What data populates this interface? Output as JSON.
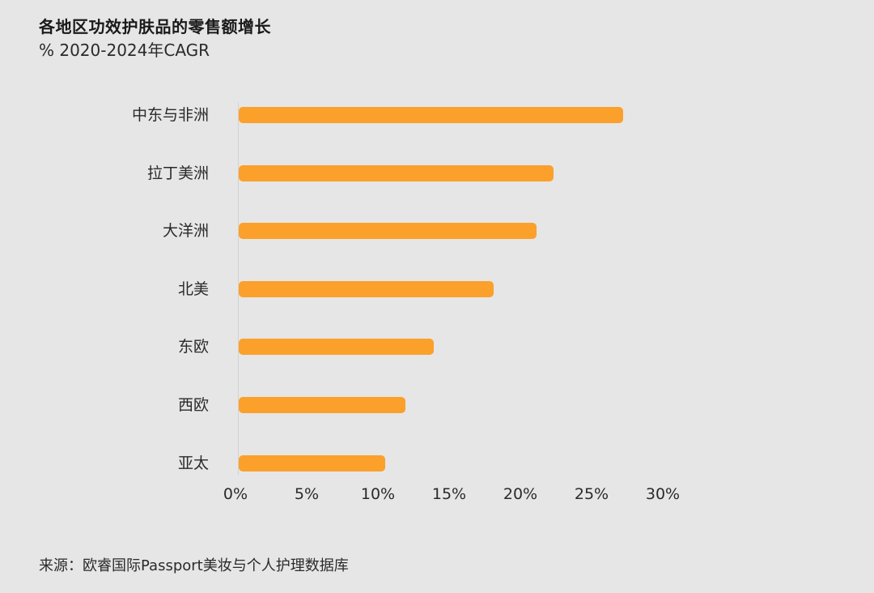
{
  "title": "各地区功效护肤品的零售额增长",
  "subtitle": "% 2020-2024年CAGR",
  "source": "来源：欧睿国际Passport美妆与个人护理数据库",
  "colors": {
    "bar": "#fba02b",
    "background": "#e6e6e6"
  },
  "axis": {
    "ticks": [
      "0%",
      "5%",
      "10%",
      "15%",
      "20%",
      "25%",
      "30%"
    ]
  },
  "chart_data": {
    "type": "bar",
    "orientation": "horizontal",
    "title": "各地区功效护肤品的零售额增长",
    "subtitle": "% 2020-2024年CAGR",
    "xlabel": "",
    "ylabel": "",
    "categories": [
      "中东与非洲",
      "拉丁美洲",
      "大洋洲",
      "北美",
      "东欧",
      "西欧",
      "亚太"
    ],
    "values": [
      27.0,
      22.1,
      20.9,
      17.9,
      13.7,
      11.7,
      10.3
    ],
    "unit": "%",
    "xlim": [
      0,
      30
    ],
    "xticks": [
      "0%",
      "5%",
      "10%",
      "15%",
      "20%",
      "25%",
      "30%"
    ],
    "grid": false,
    "legend": null,
    "source": "来源：欧睿国际Passport美妆与个人护理数据库"
  }
}
